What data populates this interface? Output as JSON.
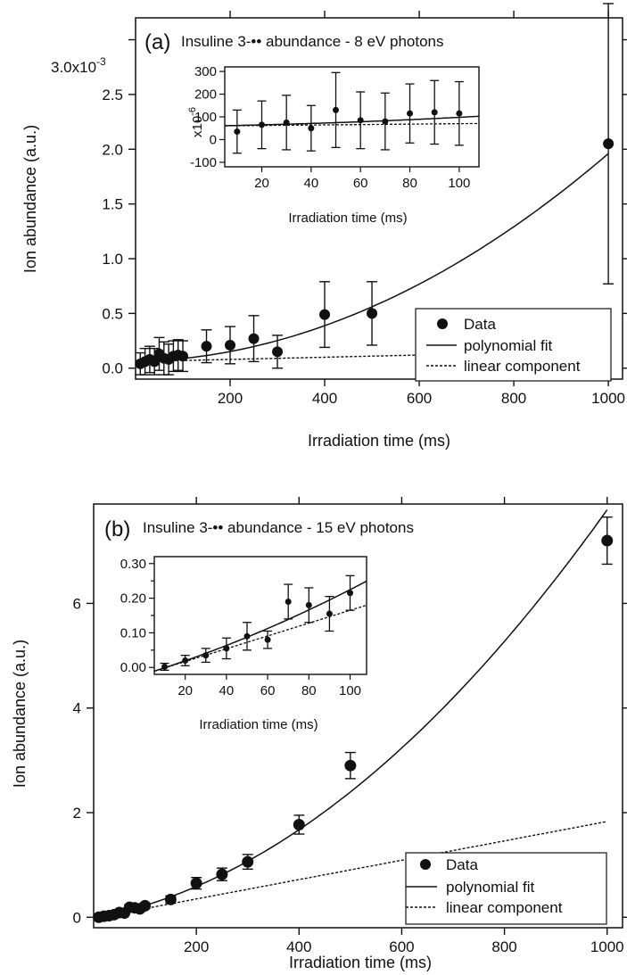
{
  "chart_data": [
    {
      "panel_label": "(a)",
      "type": "scatter",
      "title": "Insuline 3-•• abundance - 8 eV photons",
      "xlabel": "Irradiation time (ms)",
      "ylabel": "Ion abundance (a.u.)",
      "y_scale_label": "x10",
      "y_scale_exp": "-3",
      "xlim": [
        0,
        1030
      ],
      "ylim": [
        -0.1,
        3.2
      ],
      "xticks": [
        200,
        400,
        600,
        800,
        1000
      ],
      "yticks": [
        0.0,
        0.5,
        1.0,
        1.5,
        2.0,
        2.5,
        3.0
      ],
      "ytick_labels": [
        "0.0",
        "0.5",
        "1.0",
        "1.5",
        "2.0",
        "2.5",
        "3.0"
      ],
      "legend": {
        "position": "bottom-right",
        "entries": [
          "Data",
          "polynomial fit",
          "linear component"
        ]
      },
      "series": [
        {
          "name": "Data",
          "x": [
            10,
            20,
            30,
            40,
            50,
            60,
            70,
            80,
            90,
            100,
            150,
            200,
            250,
            300,
            400,
            500,
            1000
          ],
          "y": [
            0.04,
            0.06,
            0.08,
            0.06,
            0.13,
            0.09,
            0.08,
            0.11,
            0.12,
            0.11,
            0.2,
            0.21,
            0.27,
            0.15,
            0.49,
            0.5,
            2.05
          ],
          "yerr": [
            0.1,
            0.12,
            0.12,
            0.12,
            0.15,
            0.15,
            0.14,
            0.14,
            0.14,
            0.14,
            0.15,
            0.17,
            0.21,
            0.15,
            0.3,
            0.29,
            1.28
          ]
        },
        {
          "name": "polynomial fit",
          "coeffs": {
            "a": 0.06,
            "b": 0.0001,
            "c": 1.8e-06
          }
        },
        {
          "name": "linear component",
          "coeffs": {
            "a": 0.06,
            "b": 0.0001
          }
        }
      ],
      "inset": {
        "xlabel": "Irradiation time (ms)",
        "ylabel": "x10",
        "y_scale_exp": "-6",
        "xlim": [
          5,
          108
        ],
        "ylim": [
          -120,
          320
        ],
        "xticks": [
          20,
          40,
          60,
          80,
          100
        ],
        "yticks": [
          -100,
          0,
          100,
          200,
          300
        ],
        "ytick_labels": [
          "-100",
          "0",
          "100",
          "200",
          "300"
        ],
        "x": [
          10,
          20,
          30,
          40,
          50,
          60,
          70,
          80,
          90,
          100
        ],
        "y": [
          35,
          65,
          75,
          50,
          130,
          85,
          80,
          115,
          120,
          115
        ],
        "yerr": [
          95,
          105,
          120,
          100,
          165,
          125,
          125,
          130,
          140,
          140
        ],
        "fit": {
          "a": 60,
          "b": 0.2,
          "c": 0.0018
        },
        "linear": {
          "a": 60,
          "b": 0.1
        }
      }
    },
    {
      "panel_label": "(b)",
      "type": "scatter",
      "title": "Insuline 3-•• abundance - 15 eV photons",
      "xlabel": "Irradiation time (ms)",
      "ylabel": "Ion abundance (a.u.)",
      "xlim": [
        0,
        1030
      ],
      "ylim": [
        -0.2,
        7.9
      ],
      "xticks": [
        200,
        400,
        600,
        800,
        1000
      ],
      "yticks": [
        0,
        2,
        4,
        6
      ],
      "ytick_labels": [
        "0",
        "2",
        "4",
        "6"
      ],
      "legend": {
        "position": "bottom-right",
        "entries": [
          "Data",
          "polynomial fit",
          "linear component"
        ]
      },
      "series": [
        {
          "name": "Data",
          "x": [
            10,
            20,
            30,
            40,
            50,
            60,
            70,
            80,
            90,
            100,
            150,
            200,
            250,
            300,
            400,
            500,
            1000
          ],
          "y": [
            0.0,
            0.02,
            0.03,
            0.05,
            0.09,
            0.08,
            0.19,
            0.18,
            0.16,
            0.22,
            0.34,
            0.65,
            0.82,
            1.06,
            1.77,
            2.9,
            7.2
          ],
          "yerr": [
            0.015,
            0.02,
            0.02,
            0.03,
            0.04,
            0.03,
            0.05,
            0.05,
            0.05,
            0.05,
            0.07,
            0.11,
            0.12,
            0.14,
            0.18,
            0.25,
            0.45
          ]
        },
        {
          "name": "polynomial fit",
          "coeffs": {
            "a": -0.02,
            "b": 0.00185,
            "c": 5.96e-06
          }
        },
        {
          "name": "linear component",
          "coeffs": {
            "a": -0.02,
            "b": 0.00185
          }
        }
      ],
      "inset": {
        "xlabel": "Irradiation time (ms)",
        "xlim": [
          5,
          108
        ],
        "ylim": [
          -0.02,
          0.32
        ],
        "xticks": [
          20,
          40,
          60,
          80,
          100
        ],
        "yticks": [
          0.0,
          0.1,
          0.2,
          0.3
        ],
        "ytick_labels": [
          "0.00",
          "0.10",
          "0.20",
          "0.30"
        ],
        "extra_yticks": [
          0.05,
          0.15,
          0.25
        ],
        "x": [
          10,
          20,
          30,
          40,
          50,
          60,
          70,
          80,
          90,
          100
        ],
        "y": [
          0.002,
          0.02,
          0.035,
          0.055,
          0.09,
          0.08,
          0.19,
          0.18,
          0.155,
          0.215
        ],
        "yerr": [
          0.01,
          0.015,
          0.02,
          0.03,
          0.04,
          0.025,
          0.05,
          0.05,
          0.05,
          0.05
        ],
        "fit": {
          "a": -0.02,
          "b": 0.00185,
          "c": 5.96e-06
        },
        "linear": {
          "a": -0.02,
          "b": 0.00185
        }
      }
    }
  ]
}
